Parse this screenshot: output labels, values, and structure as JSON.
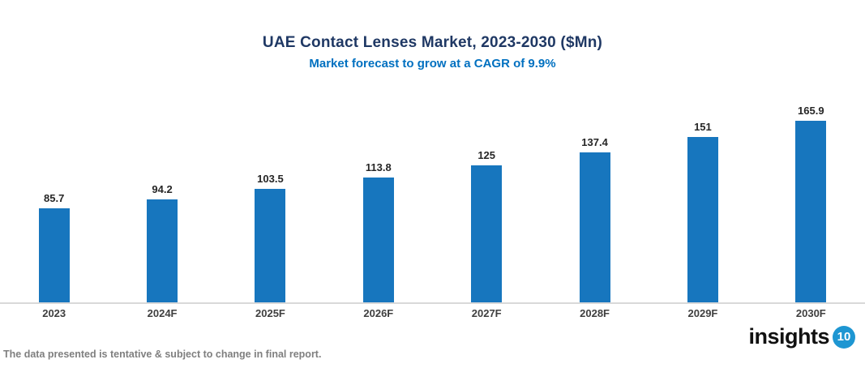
{
  "header": {
    "title": "UAE Contact Lenses Market, 2023-2030 ($Mn)",
    "subtitle": "Market forecast to grow at a CAGR of 9.9%"
  },
  "chart_data": {
    "type": "bar",
    "title": "UAE Contact Lenses Market, 2023-2030 ($Mn)",
    "subtitle": "Market forecast to grow at a CAGR of 9.9%",
    "categories": [
      "2023",
      "2024F",
      "2025F",
      "2026F",
      "2027F",
      "2028F",
      "2029F",
      "2030F"
    ],
    "values": [
      85.7,
      94.2,
      103.5,
      113.8,
      125,
      137.4,
      151,
      165.9
    ],
    "value_labels": [
      "85.7",
      "94.2",
      "103.5",
      "113.8",
      "125",
      "137.4",
      "151",
      "165.9"
    ],
    "xlabel": "",
    "ylabel": "",
    "ylim": [
      0,
      180
    ],
    "grid": false,
    "legend": "none"
  },
  "footer": {
    "disclaimer": "The data presented is tentative & subject to change in final report.",
    "logo_text": "insights",
    "logo_badge": "10"
  },
  "colors": {
    "title": "#1F3864",
    "subtitle": "#0070C0",
    "bar": "#1776BE",
    "value_label": "#262626",
    "axis_label": "#3F3F3F",
    "axis_line": "#D9D9D9",
    "disclaimer": "#7F7F7F",
    "logo_text": "#111111",
    "logo_badge_bg": "#1E96D2"
  }
}
